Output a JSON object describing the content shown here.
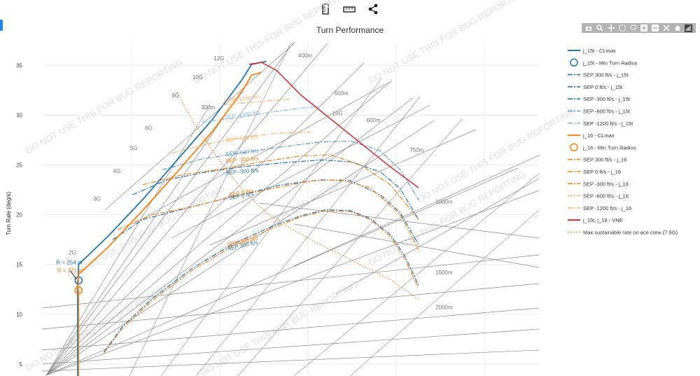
{
  "toolbar": {
    "buttons": [
      {
        "name": "ruler-vertical-icon"
      },
      {
        "name": "ruler-horizontal-icon"
      },
      {
        "name": "share-icon"
      }
    ]
  },
  "modebar": {
    "buttons": [
      "camera-icon",
      "zoom-icon",
      "pan-icon",
      "box-select-icon",
      "lasso-icon",
      "zoom-in-icon",
      "zoom-out-icon",
      "autoscale-icon",
      "home-icon",
      "plotly-logo-icon"
    ]
  },
  "colors": {
    "blue": "#1f77b4",
    "light_blue": "#5b9bd5",
    "orange": "#ff7f0e",
    "light_orange": "#fbb36b",
    "red": "#d62728",
    "grid_line": "#888888"
  },
  "watermark": "DO NOT USE THIS FOR BUG REPORTING",
  "chart_data": {
    "type": "line",
    "title": "Turn Performance",
    "xlabel": "",
    "ylabel": "Turn Rate (deg/s)",
    "y_ticks": [
      5,
      10,
      15,
      20,
      25,
      30,
      35
    ],
    "ylim": [
      3.8,
      37.2
    ],
    "xlim": [
      0,
      1000
    ],
    "grid": true,
    "legend_position": "right",
    "g_labels": [
      {
        "text": "2G",
        "x": 66,
        "y": 16.0
      },
      {
        "text": "3G",
        "x": 116,
        "y": 21.4
      },
      {
        "text": "4G",
        "x": 156,
        "y": 24.2
      },
      {
        "text": "5G",
        "x": 190,
        "y": 26.5
      },
      {
        "text": "6G",
        "x": 220,
        "y": 28.5
      },
      {
        "text": "8G",
        "x": 274,
        "y": 31.8
      },
      {
        "text": "10G",
        "x": 322,
        "y": 33.6
      },
      {
        "text": "12G",
        "x": 365,
        "y": 35.5
      },
      {
        "text": "16G",
        "x": 604,
        "y": 30.0
      }
    ],
    "radius_labels": [
      {
        "text": "300m",
        "x": 318,
        "y": 30.6
      },
      {
        "text": "400m",
        "x": 514,
        "y": 35.8
      },
      {
        "text": "500m",
        "x": 587,
        "y": 32.0
      },
      {
        "text": "600m",
        "x": 652,
        "y": 29.3
      },
      {
        "text": "750m",
        "x": 739,
        "y": 26.3
      },
      {
        "text": "1000m",
        "x": 791,
        "y": 21.1
      },
      {
        "text": "1500m",
        "x": 791,
        "y": 14.0
      },
      {
        "text": "2000m",
        "x": 791,
        "y": 10.5
      }
    ],
    "series": [
      {
        "name": "j_15t - CLmax",
        "color": "#1f77b4",
        "dash": "solid",
        "width": 1.8,
        "x": [
          70,
          71,
          130,
          200,
          270,
          340,
          400,
          420,
          450
        ],
        "y": [
          13.5,
          15.0,
          17.8,
          21.5,
          25.5,
          29.5,
          33.5,
          35.1,
          35.4
        ]
      },
      {
        "name": "j_15t - Min Turn Radius",
        "color": "#1f77b4",
        "dash": "marker",
        "x": [
          71
        ],
        "y": [
          13.4
        ]
      },
      {
        "name": "SEP 300 ft/s - j_15t",
        "color": "#1f77b4",
        "dash": "dashdot",
        "width": 1.2,
        "x": [
          122,
          160,
          220,
          300,
          380,
          460,
          520,
          570,
          620,
          660,
          700,
          730,
          757
        ],
        "y": [
          6.2,
          8.8,
          11.6,
          14.6,
          17.0,
          18.8,
          19.9,
          20.5,
          20.4,
          19.6,
          18.0,
          15.8,
          12.9
        ]
      },
      {
        "name": "SEP 0 ft/s - j_15t",
        "color": "#1f77b4",
        "dash": "dashdot",
        "width": 1.2,
        "x": [
          140,
          200,
          300,
          400,
          480,
          560,
          620,
          680,
          720,
          757
        ],
        "y": [
          17.5,
          19.5,
          20.8,
          22.0,
          23.0,
          23.5,
          23.4,
          22.0,
          20.2,
          17.0
        ]
      },
      {
        "name": "SEP -300 ft/s - j_15t",
        "color": "#1f77b4",
        "dash": "dashdot",
        "width": 1.2,
        "x": [
          180,
          250,
          330,
          400,
          480,
          560,
          620,
          680,
          720,
          757
        ],
        "y": [
          22.0,
          23.5,
          24.3,
          24.8,
          25.2,
          25.5,
          25.3,
          24.3,
          22.6,
          19.5
        ]
      },
      {
        "name": "SEP -600 ft/s - j_15t",
        "color": "#5b9bd5",
        "dash": "dashdot",
        "width": 1.2,
        "x": [
          240,
          320,
          400,
          480,
          560,
          620,
          680,
          720,
          757
        ],
        "y": [
          24.5,
          25.6,
          26.2,
          26.8,
          27.3,
          27.4,
          26.4,
          24.5,
          21.5
        ]
      },
      {
        "name": "SEP -1200 ft/s - j_15t",
        "color": "#8ab9e0",
        "dash": "dashdot",
        "width": 1.2,
        "x": [
          320,
          400,
          460,
          520,
          560
        ],
        "y": [
          29.3,
          29.8,
          30.3,
          30.7,
          30.9
        ]
      },
      {
        "name": "j_16 - CLmax",
        "color": "#ff7f0e",
        "dash": "solid",
        "width": 1.8,
        "x": [
          70,
          71,
          130,
          200,
          270,
          340,
          400,
          420,
          440
        ],
        "y": [
          12.4,
          14.0,
          16.7,
          20.4,
          24.3,
          28.3,
          32.3,
          34.0,
          34.3
        ]
      },
      {
        "name": "j_16 - Min Turn Radius",
        "color": "#ff7f0e",
        "dash": "marker",
        "x": [
          71
        ],
        "y": [
          12.4
        ]
      },
      {
        "name": "SEP 300 ft/s - j_16",
        "color": "#ff7f0e",
        "dash": "dashdot",
        "width": 1.2,
        "x": [
          122,
          160,
          220,
          300,
          380,
          460,
          520,
          570,
          620,
          660,
          700,
          730,
          757
        ],
        "y": [
          6.1,
          8.6,
          11.4,
          14.4,
          16.8,
          18.6,
          19.8,
          20.4,
          20.3,
          19.5,
          17.8,
          15.5,
          12.6
        ]
      },
      {
        "name": "SEP 0 ft/s - j_16",
        "color": "#ff7f0e",
        "dash": "dashdot",
        "width": 1.2,
        "x": [
          150,
          220,
          300,
          380,
          460,
          540,
          600,
          660,
          720,
          757
        ],
        "y": [
          18.5,
          20.0,
          20.8,
          21.8,
          22.6,
          23.4,
          23.5,
          22.7,
          20.0,
          16.5
        ]
      },
      {
        "name": "SEP -300 ft/s - j_16",
        "color": "#ff7f0e",
        "dash": "dashdot",
        "width": 1.2,
        "x": [
          200,
          280,
          360,
          440,
          520,
          580,
          640,
          700,
          757
        ],
        "y": [
          23.0,
          24.0,
          24.6,
          25.3,
          25.9,
          26.0,
          25.0,
          23.0,
          19.5
        ]
      },
      {
        "name": "SEP -600 ft/s - j_16",
        "color": "#fbb36b",
        "dash": "dashdot",
        "width": 1.2,
        "x": [
          260,
          340,
          420,
          480,
          540
        ],
        "y": [
          26.2,
          27.2,
          27.9,
          28.2,
          28.3
        ]
      },
      {
        "name": "SEP -1200 ft/s - j_16",
        "color": "#fbb36b",
        "dash": "dashdot",
        "width": 1.2,
        "x": [
          360,
          420,
          470,
          500
        ],
        "y": [
          31.0,
          31.3,
          31.5,
          31.6
        ]
      },
      {
        "name": "j_15t, j_16 - VNE",
        "color": "#d62728",
        "dash": "solid",
        "width": 1.5,
        "x": [
          415,
          440,
          470,
          520,
          560,
          600,
          650,
          700,
          757
        ],
        "y": [
          35.1,
          35.3,
          34.5,
          32.0,
          30.4,
          28.8,
          26.8,
          24.8,
          22.7
        ]
      },
      {
        "name": "Max sustainable rate on ace crew (7.5G)",
        "color": "#ff7f0e",
        "dash": "dot",
        "width": 1.3,
        "x": [
          270,
          300,
          350,
          400,
          450,
          500,
          550,
          600,
          650,
          700,
          757
        ],
        "y": [
          32.3,
          29.5,
          25.8,
          22.6,
          20.2,
          18.6,
          17.2,
          16.0,
          14.7,
          13.5,
          11.5
        ]
      }
    ],
    "vertical_lines": [
      {
        "color": "#1f77b4",
        "x": 69,
        "y_from": 3.8,
        "y_to": 13.4
      },
      {
        "color": "#ff7f0e",
        "x": 71,
        "y_from": 3.8,
        "y_to": 12.4
      }
    ],
    "sep_labels": [
      {
        "text": "SEP -1200 ft/s",
        "x": 366,
        "y": 31.2,
        "color": "#fbb36b",
        "angle": -8
      },
      {
        "text": "SEP -1200 ft/s",
        "x": 366,
        "y": 29.6,
        "color": "#8ab9e0",
        "angle": -8
      },
      {
        "text": "SEP -600 ft/s",
        "x": 368,
        "y": 27.3,
        "color": "#fbb36b",
        "angle": -6
      },
      {
        "text": "SEP -600 ft/s",
        "x": 368,
        "y": 25.9,
        "color": "#5b9bd5",
        "angle": -6
      },
      {
        "text": "SEP -300 ft/s",
        "x": 368,
        "y": 25.2,
        "color": "#ff7f0e",
        "angle": -5
      },
      {
        "text": "SEP -300 ft/s",
        "x": 368,
        "y": 24.0,
        "color": "#1f77b4",
        "angle": -5
      },
      {
        "text": "SEP 0 ft/s",
        "x": 375,
        "y": 21.8,
        "color": "#ff7f0e",
        "angle": -10
      },
      {
        "text": "SEP 0 ft/s",
        "x": 375,
        "y": 21.5,
        "color": "#1f77b4",
        "angle": -10
      },
      {
        "text": "SEP 300 ft/s",
        "x": 372,
        "y": 16.8,
        "color": "#ff7f0e",
        "angle": -12
      },
      {
        "text": "SEP 300 ft/s",
        "x": 372,
        "y": 16.4,
        "color": "#1f77b4",
        "angle": -12
      }
    ],
    "annotations": [
      {
        "text": "R = 254 m",
        "x": 26,
        "y": 15.0,
        "color": "#1f77b4"
      },
      {
        "text": "R = 271 m",
        "x": 28,
        "y": 14.2,
        "color": "#ff7f0e"
      }
    ]
  }
}
